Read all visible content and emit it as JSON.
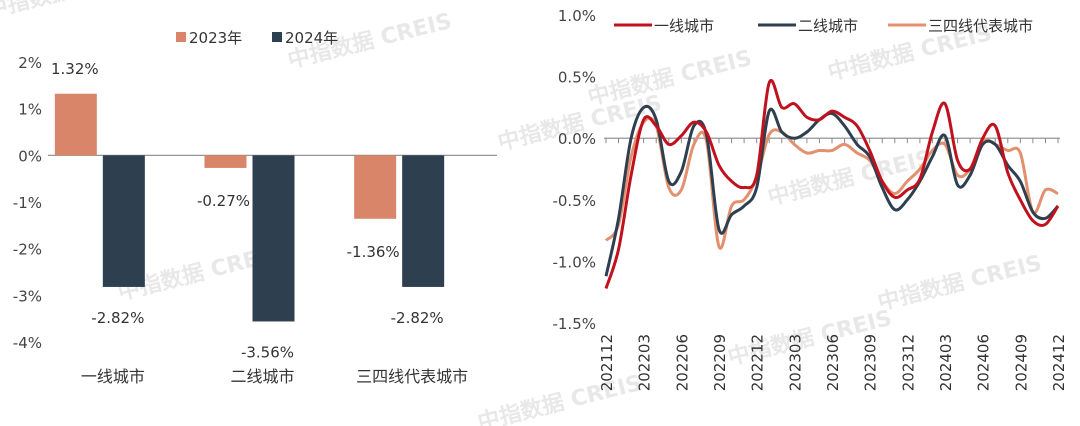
{
  "watermark": "中指数据 CREIS",
  "chart_data": [
    {
      "type": "bar",
      "categories": [
        "一线城市",
        "二线城市",
        "三四线代表城市"
      ],
      "series": [
        {
          "name": "2023年",
          "values": [
            1.32,
            -0.27,
            -1.36
          ],
          "labels": [
            "1.32%",
            "-0.27%",
            "-1.36%"
          ]
        },
        {
          "name": "2024年",
          "values": [
            -2.82,
            -3.56,
            -2.82
          ],
          "labels": [
            "-2.82%",
            "-3.56%",
            "-2.82%"
          ]
        }
      ],
      "ylim": [
        -4,
        2
      ],
      "yticks": [
        "2%",
        "1%",
        "0%",
        "-1%",
        "-2%",
        "-3%",
        "-4%"
      ],
      "legend": "top",
      "colors": [
        "#d9856a",
        "#2e3f50"
      ]
    },
    {
      "type": "line",
      "x": [
        "202112",
        "202201",
        "202202",
        "202203",
        "202204",
        "202205",
        "202206",
        "202207",
        "202208",
        "202209",
        "202210",
        "202211",
        "202212",
        "202301",
        "202302",
        "202303",
        "202304",
        "202305",
        "202306",
        "202307",
        "202308",
        "202309",
        "202310",
        "202311",
        "202312",
        "202401",
        "202402",
        "202403",
        "202404",
        "202405",
        "202406",
        "202407",
        "202408",
        "202409",
        "202410",
        "202411",
        "202412"
      ],
      "xticks": [
        "202112",
        "202203",
        "202206",
        "202209",
        "202212",
        "202303",
        "202306",
        "202309",
        "202312",
        "202403",
        "202406",
        "202409",
        "202412"
      ],
      "series": [
        {
          "name": "一线城市",
          "values": [
            -1.22,
            -0.9,
            -0.3,
            0.15,
            0.1,
            -0.05,
            0.02,
            0.13,
            0.05,
            -0.22,
            -0.35,
            -0.4,
            -0.3,
            0.45,
            0.25,
            0.28,
            0.17,
            0.15,
            0.22,
            0.17,
            0.1,
            -0.1,
            -0.35,
            -0.48,
            -0.42,
            -0.33,
            0.05,
            0.28,
            -0.18,
            -0.25,
            0.0,
            0.1,
            -0.28,
            -0.5,
            -0.67,
            -0.7,
            -0.55
          ]
        },
        {
          "name": "二线城市",
          "values": [
            -1.12,
            -0.65,
            0.0,
            0.25,
            0.15,
            -0.35,
            -0.27,
            0.1,
            0.03,
            -0.74,
            -0.62,
            -0.55,
            -0.4,
            0.22,
            0.05,
            0.0,
            0.05,
            0.15,
            0.2,
            0.1,
            -0.05,
            -0.15,
            -0.4,
            -0.58,
            -0.5,
            -0.35,
            -0.15,
            0.02,
            -0.38,
            -0.3,
            -0.05,
            -0.05,
            -0.22,
            -0.35,
            -0.6,
            -0.65,
            -0.55
          ]
        },
        {
          "name": "三四线代表城市",
          "values": [
            -0.83,
            -0.7,
            -0.15,
            0.13,
            0.1,
            -0.4,
            -0.42,
            -0.05,
            -0.02,
            -0.88,
            -0.55,
            -0.5,
            -0.32,
            0.03,
            0.05,
            -0.05,
            -0.12,
            -0.1,
            -0.1,
            -0.05,
            -0.12,
            -0.18,
            -0.35,
            -0.45,
            -0.35,
            -0.25,
            -0.1,
            -0.05,
            -0.3,
            -0.25,
            -0.02,
            -0.05,
            -0.1,
            -0.12,
            -0.6,
            -0.42,
            -0.45
          ]
        }
      ],
      "ylim": [
        -1.5,
        1.0
      ],
      "yticks": [
        "1.0%",
        "0.5%",
        "0.0%",
        "-0.5%",
        "-1.0%",
        "-1.5%"
      ],
      "legend": "top",
      "colors": [
        "#c0121e",
        "#2e3f50",
        "#e3906e"
      ]
    }
  ]
}
